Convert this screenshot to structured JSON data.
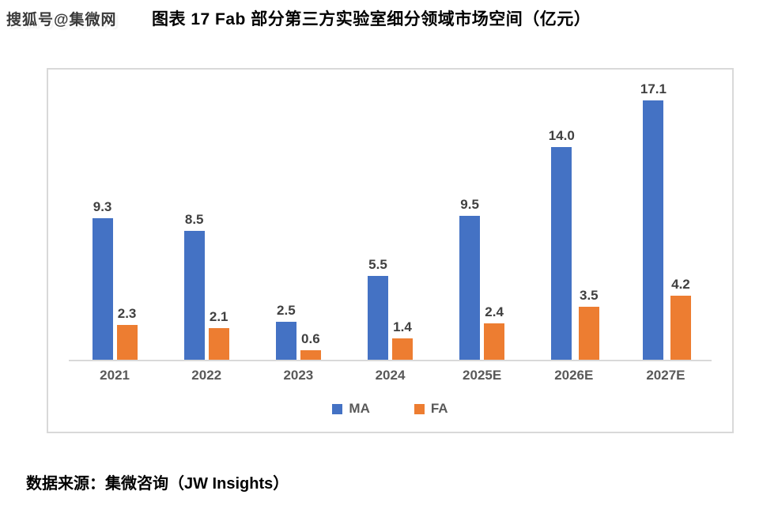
{
  "watermark": "搜狐号@集微网",
  "header": {
    "title": "图表 17 Fab 部分第三方实验室细分领域市场空间（亿元）"
  },
  "footer": {
    "source": "数据来源：集微咨询（JW Insights）"
  },
  "colors": {
    "ma_blue": "#4472C4",
    "fa_orange": "#ED7D31",
    "axis_gray": "#D9D9D9",
    "label_dark": "#404040",
    "tick_gray": "#595959"
  },
  "chart_data": {
    "type": "bar",
    "title": "图表 17 Fab 部分第三方实验室细分领域市场空间（亿元）",
    "categories": [
      "2021",
      "2022",
      "2023",
      "2024",
      "2025E",
      "2026E",
      "2027E"
    ],
    "series": [
      {
        "name": "MA",
        "color": "#4472C4",
        "values": [
          9.3,
          8.5,
          2.5,
          5.5,
          9.5,
          14.0,
          17.1
        ]
      },
      {
        "name": "FA",
        "color": "#ED7D31",
        "values": [
          2.3,
          2.1,
          0.6,
          1.4,
          2.4,
          3.5,
          4.2
        ]
      }
    ],
    "xlabel": "",
    "ylabel": "",
    "ylim": [
      0,
      18.7
    ],
    "grid": false,
    "axis_visible": "x-only",
    "legend_position": "bottom",
    "data_labels": true,
    "data_label_format": "0.0",
    "unit": "亿元"
  }
}
